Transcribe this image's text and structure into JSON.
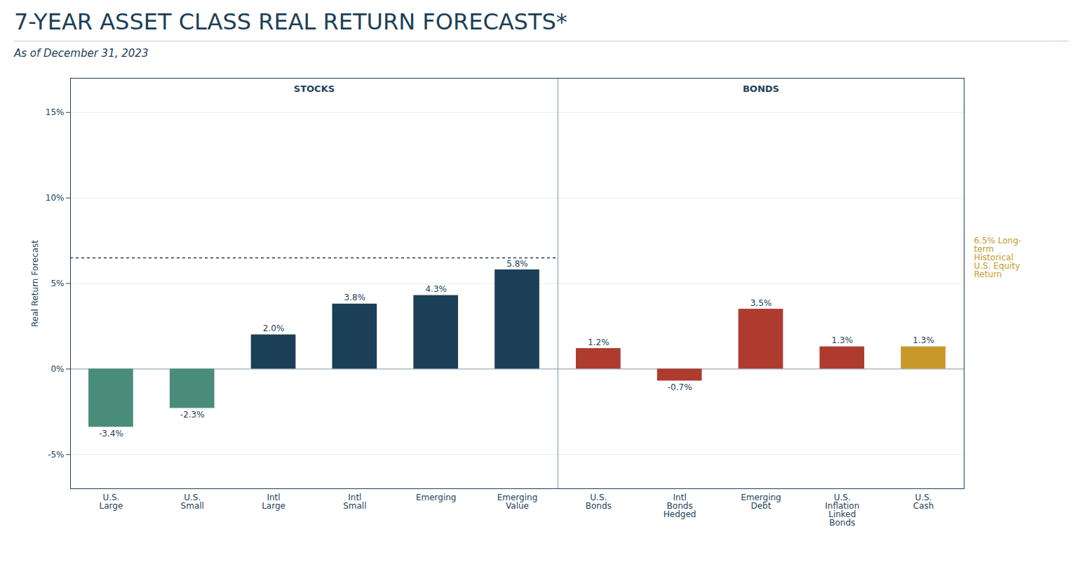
{
  "chart_data": {
    "type": "bar",
    "title": "7-YEAR ASSET CLASS REAL RETURN FORECASTS*",
    "subtitle": "As of December 31, 2023",
    "categories": [
      "U.S.\nLarge",
      "U.S.\nSmall",
      "Intl\nLarge",
      "Intl\nSmall",
      "Emerging",
      "Emerging\nValue",
      "U.S.\nBonds",
      "Intl\nBonds\nHedged",
      "Emerging\nDebt",
      "U.S.\nInflation\nLinked\nBonds",
      "U.S.\nCash"
    ],
    "values": [
      -3.4,
      -2.3,
      2.0,
      3.8,
      4.3,
      5.8,
      1.2,
      -0.7,
      3.5,
      1.3,
      1.3
    ],
    "value_labels": [
      "-3.4%",
      "-2.3%",
      "2.0%",
      "3.8%",
      "4.3%",
      "5.8%",
      "1.2%",
      "-0.7%",
      "3.5%",
      "1.3%",
      "1.3%"
    ],
    "colors": [
      "#4a8c7a",
      "#4a8c7a",
      "#1c3f58",
      "#1c3f58",
      "#1c3f58",
      "#1c3f58",
      "#ae3b2e",
      "#ae3b2e",
      "#ae3b2e",
      "#ae3b2e",
      "#c8982a"
    ],
    "ylabel": "Real Return Forecast",
    "ylim": [
      -7,
      17
    ],
    "yticks": [
      {
        "value": -5,
        "label": "-5%"
      },
      {
        "value": 0,
        "label": "0%"
      },
      {
        "value": 5,
        "label": "5%"
      },
      {
        "value": 10,
        "label": "10%"
      },
      {
        "value": 15,
        "label": "15%"
      }
    ],
    "grid": true,
    "data_labels": true,
    "annotations": [
      {
        "text": "STOCKS",
        "from": "U.S.\nLarge",
        "to": "Emerging\nValue"
      },
      {
        "text": "BONDS",
        "from": "U.S.\nBonds",
        "to": "U.S.\nCash"
      }
    ],
    "reference_line": {
      "y": 6.5,
      "label": "6.5% Long-\nterm\nHistorical\nU.S. Equity\nReturn",
      "color": "#c8982a",
      "from": "U.S.\nLarge",
      "to": "Emerging\nValue"
    }
  }
}
